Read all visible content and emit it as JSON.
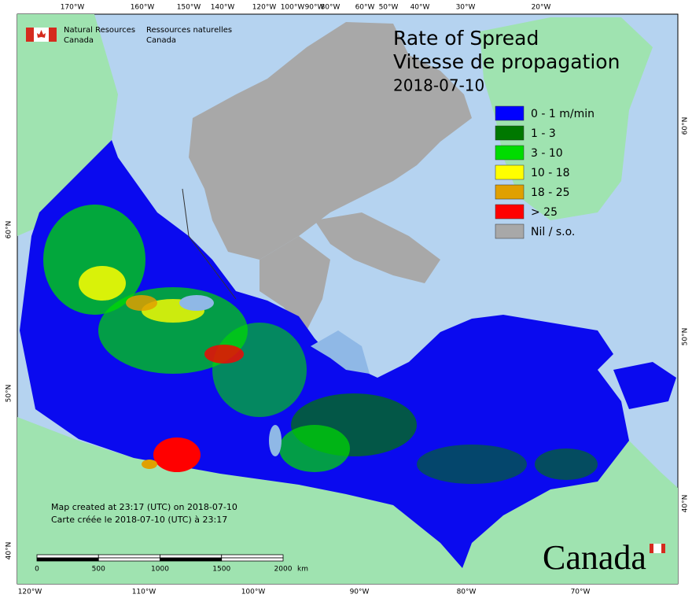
{
  "header": {
    "agency_en": [
      "Natural Resources",
      "Canada"
    ],
    "agency_fr": [
      "Ressources naturelles",
      "Canada"
    ]
  },
  "title": [
    "Rate of Spread",
    "Vitesse de propagation"
  ],
  "date": "2018-07-10",
  "legend": [
    {
      "label": "0 - 1 m/min",
      "color": "#0000ff"
    },
    {
      "label": "1 - 3",
      "color": "#007800"
    },
    {
      "label": "3 - 10",
      "color": "#00dc00"
    },
    {
      "label": "10 - 18",
      "color": "#ffff00"
    },
    {
      "label": "18 - 25",
      "color": "#e0a000"
    },
    {
      "label": "> 25",
      "color": "#ff0000"
    },
    {
      "label": "Nil / s.o.",
      "color": "#a8a8a8"
    }
  ],
  "graticule": {
    "top": [
      "170°W",
      "160°W",
      "150°W",
      "140°W",
      "120°W",
      "100°W",
      "90°W",
      "80°W",
      "60°W",
      "50°W",
      "40°W",
      "30°W",
      "20°W"
    ],
    "bottom": [
      "120°W",
      "110°W",
      "100°W",
      "90°W",
      "80°W",
      "70°W"
    ],
    "left": [
      "60°N",
      "50°N",
      "40°N"
    ],
    "right": [
      "60°N",
      "50°N",
      "40°N"
    ]
  },
  "notes": [
    "Map created at 23:17 (UTC) on 2018-07-10",
    "Carte créée le 2018-07-10 (UTC) à 23:17"
  ],
  "scale_bar": {
    "ticks": [
      0,
      500,
      1000,
      1500,
      2000
    ],
    "unit": "km"
  },
  "wordmark": "Canada"
}
